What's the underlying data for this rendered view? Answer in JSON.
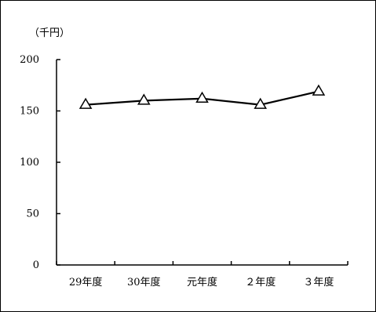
{
  "chart_data": {
    "type": "line",
    "unit_label": "（千円）",
    "categories": [
      "29年度",
      "30年度",
      "元年度",
      "２年度",
      "３年度"
    ],
    "series": [
      {
        "values": [
          156,
          160,
          162,
          156,
          169
        ],
        "marker": "triangle"
      }
    ],
    "ylim": [
      0,
      200
    ],
    "yticks": [
      0,
      50,
      100,
      150,
      200
    ],
    "grid": false,
    "line_color": "#000000",
    "marker_fill": "#ffffff"
  }
}
